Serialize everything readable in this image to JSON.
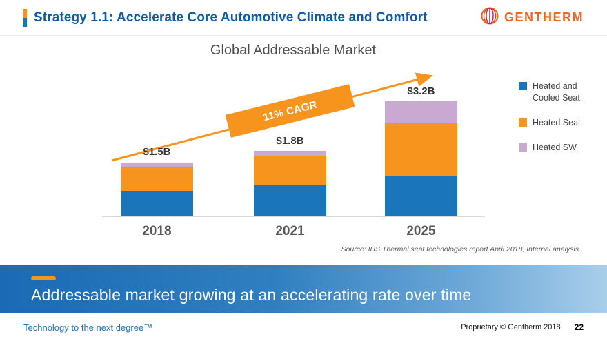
{
  "slide": {
    "title": "Strategy 1.1: Accelerate Core Automotive Climate and Comfort",
    "banner_text": "Addressable market growing at an accelerating rate over time",
    "source_text": "Source:  IHS Thermal seat technologies report April 2018; Internal analysis.",
    "footer_left": "Technology to the next degree™",
    "footer_right": "Proprietary © Gentherm 2018",
    "page_number": "22"
  },
  "logo": {
    "text": "GENTHERM",
    "color": "#F26522"
  },
  "chart_data": {
    "type": "bar",
    "stacked": true,
    "title": "Global Addressable Market",
    "unit": "$B",
    "categories": [
      "2018",
      "2021",
      "2025"
    ],
    "series": [
      {
        "name": "Heated and Cooled Seat",
        "color": "#1B75BB",
        "values": [
          0.7,
          0.85,
          1.1
        ]
      },
      {
        "name": "Heated Seat",
        "color": "#F7941E",
        "values": [
          0.68,
          0.8,
          1.5
        ]
      },
      {
        "name": "Heated SW",
        "color": "#C9A8D2",
        "values": [
          0.12,
          0.15,
          0.6
        ]
      }
    ],
    "totals_labels": [
      "$1.5B",
      "$1.8B",
      "$3.2B"
    ],
    "annotation": "11% CAGR",
    "legend_position": "right",
    "ylim": [
      0,
      3.5
    ],
    "grid": false
  }
}
